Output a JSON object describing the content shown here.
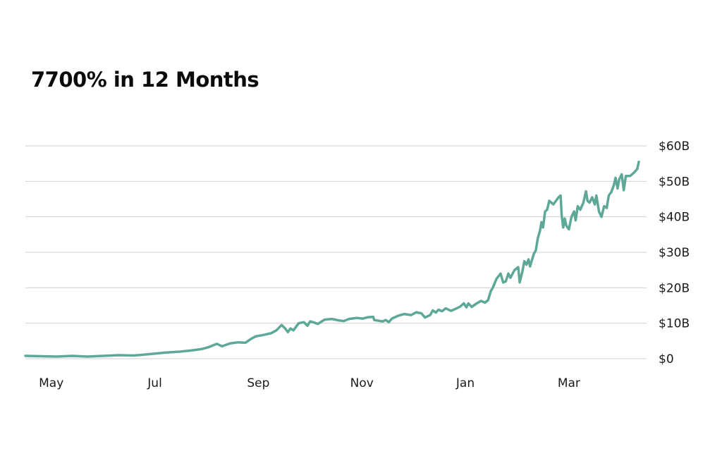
{
  "chart_data": {
    "type": "line",
    "title": "7700% in 12 Months",
    "xlabel": "",
    "ylabel": "",
    "x_ticks": [
      "May",
      "Jul",
      "Sep",
      "Nov",
      "Jan",
      "Mar"
    ],
    "y_ticks": [
      "$0",
      "$10B",
      "$20B",
      "$30B",
      "$40B",
      "$50B",
      "$60B"
    ],
    "y_tick_values": [
      0,
      10,
      20,
      30,
      40,
      50,
      60
    ],
    "ylim": [
      0,
      60
    ],
    "y_unit": "$B",
    "grid": true,
    "legend": "none",
    "line_color": "#5ea898",
    "grid_color": "#cfcfcf",
    "x_month_range": [
      0,
      12
    ],
    "x_tick_month_index": [
      0.5,
      2.5,
      4.5,
      6.5,
      8.5,
      10.5
    ],
    "series": [
      {
        "values": [
          [
            0.0,
            0.8
          ],
          [
            0.3,
            0.7
          ],
          [
            0.6,
            0.6
          ],
          [
            0.9,
            0.8
          ],
          [
            1.2,
            0.6
          ],
          [
            1.5,
            0.8
          ],
          [
            1.8,
            1.0
          ],
          [
            2.1,
            0.9
          ],
          [
            2.4,
            1.3
          ],
          [
            2.7,
            1.7
          ],
          [
            3.0,
            2.0
          ],
          [
            3.2,
            2.3
          ],
          [
            3.4,
            2.7
          ],
          [
            3.55,
            3.3
          ],
          [
            3.7,
            4.2
          ],
          [
            3.8,
            3.5
          ],
          [
            3.95,
            4.3
          ],
          [
            4.1,
            4.6
          ],
          [
            4.25,
            4.5
          ],
          [
            4.35,
            5.5
          ],
          [
            4.45,
            6.3
          ],
          [
            4.6,
            6.7
          ],
          [
            4.75,
            7.2
          ],
          [
            4.85,
            8.0
          ],
          [
            4.95,
            9.5
          ],
          [
            5.02,
            8.5
          ],
          [
            5.07,
            7.5
          ],
          [
            5.12,
            8.5
          ],
          [
            5.18,
            8.0
          ],
          [
            5.28,
            10.0
          ],
          [
            5.38,
            10.3
          ],
          [
            5.45,
            9.3
          ],
          [
            5.5,
            10.5
          ],
          [
            5.58,
            10.2
          ],
          [
            5.65,
            9.8
          ],
          [
            5.78,
            11.0
          ],
          [
            5.92,
            11.2
          ],
          [
            6.05,
            10.8
          ],
          [
            6.15,
            10.6
          ],
          [
            6.25,
            11.2
          ],
          [
            6.4,
            11.5
          ],
          [
            6.52,
            11.3
          ],
          [
            6.62,
            11.7
          ],
          [
            6.72,
            11.8
          ],
          [
            6.74,
            10.9
          ],
          [
            6.82,
            10.7
          ],
          [
            6.9,
            10.5
          ],
          [
            6.96,
            10.9
          ],
          [
            7.02,
            10.3
          ],
          [
            7.08,
            11.3
          ],
          [
            7.2,
            12.1
          ],
          [
            7.32,
            12.6
          ],
          [
            7.45,
            12.3
          ],
          [
            7.55,
            13.1
          ],
          [
            7.65,
            12.8
          ],
          [
            7.72,
            11.6
          ],
          [
            7.82,
            12.3
          ],
          [
            7.87,
            13.6
          ],
          [
            7.93,
            13.0
          ],
          [
            7.98,
            13.8
          ],
          [
            8.05,
            13.4
          ],
          [
            8.12,
            14.2
          ],
          [
            8.22,
            13.5
          ],
          [
            8.32,
            14.1
          ],
          [
            8.4,
            14.7
          ],
          [
            8.47,
            15.6
          ],
          [
            8.52,
            14.5
          ],
          [
            8.56,
            15.6
          ],
          [
            8.62,
            14.6
          ],
          [
            8.72,
            15.6
          ],
          [
            8.8,
            16.3
          ],
          [
            8.88,
            15.8
          ],
          [
            8.94,
            16.5
          ],
          [
            8.99,
            19.0
          ],
          [
            9.03,
            20.0
          ],
          [
            9.1,
            22.5
          ],
          [
            9.18,
            24.0
          ],
          [
            9.23,
            21.5
          ],
          [
            9.28,
            21.8
          ],
          [
            9.33,
            24.0
          ],
          [
            9.37,
            22.8
          ],
          [
            9.45,
            25.0
          ],
          [
            9.52,
            25.8
          ],
          [
            9.55,
            21.5
          ],
          [
            9.6,
            24.5
          ],
          [
            9.64,
            27.5
          ],
          [
            9.68,
            26.5
          ],
          [
            9.72,
            28.0
          ],
          [
            9.75,
            26.0
          ],
          [
            9.82,
            29.5
          ],
          [
            9.86,
            30.5
          ],
          [
            9.9,
            34.0
          ],
          [
            9.94,
            36.0
          ],
          [
            9.97,
            38.5
          ],
          [
            10.0,
            37.0
          ],
          [
            10.04,
            41.5
          ],
          [
            10.08,
            42.0
          ],
          [
            10.12,
            44.5
          ],
          [
            10.16,
            44.0
          ],
          [
            10.2,
            43.5
          ],
          [
            10.25,
            44.5
          ],
          [
            10.3,
            45.5
          ],
          [
            10.34,
            46.0
          ],
          [
            10.36,
            40.5
          ],
          [
            10.39,
            37.0
          ],
          [
            10.42,
            39.5
          ],
          [
            10.45,
            37.5
          ],
          [
            10.5,
            36.5
          ],
          [
            10.55,
            40.0
          ],
          [
            10.6,
            41.5
          ],
          [
            10.63,
            39.0
          ],
          [
            10.67,
            43.0
          ],
          [
            10.72,
            42.0
          ],
          [
            10.78,
            44.0
          ],
          [
            10.83,
            47.2
          ],
          [
            10.86,
            44.5
          ],
          [
            10.9,
            44.0
          ],
          [
            10.95,
            45.5
          ],
          [
            11.0,
            43.5
          ],
          [
            11.03,
            46.0
          ],
          [
            11.08,
            41.5
          ],
          [
            11.13,
            40.0
          ],
          [
            11.18,
            43.0
          ],
          [
            11.23,
            42.5
          ],
          [
            11.27,
            46.0
          ],
          [
            11.32,
            47.0
          ],
          [
            11.37,
            49.0
          ],
          [
            11.4,
            51.0
          ],
          [
            11.44,
            48.0
          ],
          [
            11.47,
            50.5
          ],
          [
            11.52,
            52.0
          ],
          [
            11.56,
            47.5
          ],
          [
            11.6,
            51.5
          ],
          [
            11.68,
            51.5
          ],
          [
            11.76,
            52.5
          ],
          [
            11.82,
            53.5
          ],
          [
            11.85,
            55.5
          ]
        ]
      }
    ]
  }
}
